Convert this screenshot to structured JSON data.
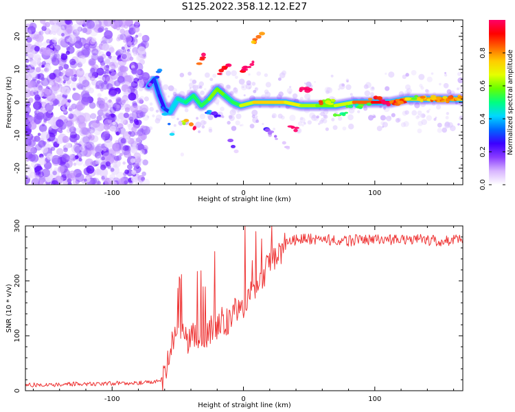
{
  "chart_data": [
    {
      "type": "heatmap",
      "title": "S125.2022.358.12.12.E27",
      "xlabel": "Height of straight line (km)",
      "ylabel": "Frequency (Hz)",
      "xlim": [
        -166,
        167
      ],
      "ylim": [
        -25,
        25
      ],
      "xticks": [
        -100,
        0,
        100
      ],
      "yticks": [
        -20,
        -10,
        0,
        10,
        20
      ],
      "colorbar": {
        "label": "Normalized spectral amplitude",
        "range": [
          0,
          1
        ],
        "ticks": [
          0.0,
          0.2,
          0.4,
          0.6,
          0.8
        ],
        "colors": [
          "#ffffff",
          "#d8b5ff",
          "#8a3cff",
          "#3b00ff",
          "#0066ff",
          "#00d8ff",
          "#00ff80",
          "#66ff00",
          "#e5ff00",
          "#ffcc00",
          "#ff6600",
          "#ff0000",
          "#ff0066"
        ]
      },
      "ridge": [
        [
          -72,
          5,
          0.22
        ],
        [
          -68,
          7,
          0.28
        ],
        [
          -64,
          2,
          0.3
        ],
        [
          -60,
          -2,
          0.22
        ],
        [
          -56,
          -3,
          0.35
        ],
        [
          -50,
          1,
          0.5
        ],
        [
          -44,
          0,
          0.45
        ],
        [
          -38,
          2,
          0.56
        ],
        [
          -32,
          -1,
          0.48
        ],
        [
          -26,
          1,
          0.58
        ],
        [
          -20,
          4,
          0.62
        ],
        [
          -14,
          2,
          0.55
        ],
        [
          -8,
          0,
          0.48
        ],
        [
          -2,
          -1,
          0.58
        ],
        [
          8,
          0,
          0.72
        ],
        [
          20,
          0,
          0.76
        ],
        [
          32,
          0,
          0.72
        ],
        [
          44,
          -1,
          0.65
        ],
        [
          56,
          -1,
          0.6
        ],
        [
          70,
          -1,
          0.58
        ],
        [
          84,
          0,
          0.72
        ],
        [
          98,
          0,
          0.95
        ],
        [
          112,
          0,
          0.9
        ],
        [
          124,
          1,
          0.72
        ],
        [
          136,
          1,
          0.75
        ],
        [
          148,
          1,
          0.82
        ],
        [
          160,
          1,
          0.78
        ],
        [
          167,
          1,
          0.72
        ]
      ]
    },
    {
      "type": "line",
      "xlabel": "Height of straight line (km)",
      "ylabel": "SNR (10 * v/v)",
      "xlim": [
        -166,
        167
      ],
      "ylim": [
        0,
        300
      ],
      "xticks": [
        -100,
        0,
        100
      ],
      "yticks": [
        0,
        100,
        200,
        300
      ],
      "color": "#ee3333",
      "series": [
        {
          "x": [
            -166,
            -150,
            -130,
            -110,
            -90,
            -75,
            -65,
            -60,
            -56,
            -52,
            -48,
            -44,
            -40,
            -36,
            -32,
            -28,
            -24,
            -20,
            -16,
            -12,
            -8,
            -4,
            0,
            4,
            8,
            12,
            16,
            20,
            24,
            28,
            32,
            36,
            40,
            50,
            60,
            70,
            80,
            90,
            100,
            110,
            120,
            130,
            140,
            150,
            160,
            167
          ],
          "values": [
            10,
            11,
            12,
            13,
            14,
            15,
            17,
            25,
            70,
            100,
            110,
            90,
            95,
            105,
            85,
            100,
            115,
            110,
            130,
            125,
            140,
            150,
            155,
            170,
            180,
            190,
            215,
            230,
            245,
            255,
            265,
            272,
            275,
            276,
            275,
            274,
            273,
            275,
            276,
            274,
            275,
            276,
            274,
            273,
            275,
            276
          ]
        }
      ]
    }
  ]
}
